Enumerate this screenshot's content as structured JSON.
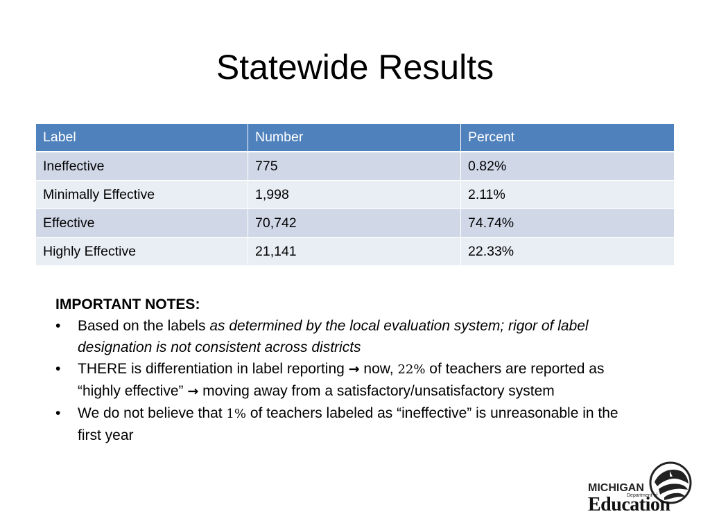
{
  "slide": {
    "title": "Statewide Results"
  },
  "table": {
    "headers": [
      "Label",
      "Number",
      "Percent"
    ],
    "rows": [
      [
        "Ineffective",
        "775",
        "0.82%"
      ],
      [
        "Minimally Effective",
        "1,998",
        "2.11%"
      ],
      [
        "Effective",
        "70,742",
        "74.74%"
      ],
      [
        "Highly Effective",
        "21,141",
        "22.33%"
      ]
    ]
  },
  "notes": {
    "heading": "IMPORTANT NOTES:",
    "bullet_symbol": "•",
    "arrow_symbol": "→",
    "items": [
      {
        "plain": "Based on the labels ",
        "italic": "as determined by the local evaluation system; rigor of label designation is not consistent across districts"
      },
      {
        "part1": "THERE is differentiation in label reporting ",
        "part2": " now, ",
        "pct": "22%",
        "part3": " of teachers are reported as “highly effective” ",
        "part4": " moving away from a satisfactory/unsatisfactory system"
      },
      {
        "part1": "We do not believe that ",
        "pct": "1%",
        "part2": " of teachers labeled as “ineffective” is unreasonable in the first year"
      }
    ]
  },
  "logo": {
    "top": "MICHIGAN",
    "dept": "Department of",
    "main": "Education",
    "icon": "michigan-map-icon"
  },
  "colors": {
    "header_bg": "#4f81bd",
    "row_odd": "#d0d8e8",
    "row_even": "#e9edf4"
  }
}
